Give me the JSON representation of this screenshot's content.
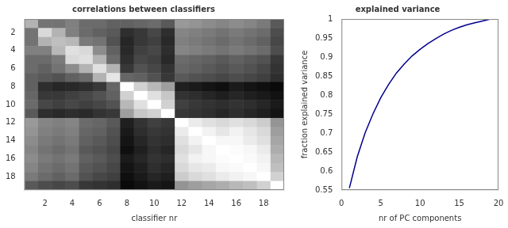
{
  "chart_data": [
    {
      "type": "heatmap",
      "title": "correlations between classifiers",
      "x_label": "classifier nr",
      "cells": [
        [
          0.7,
          0.45,
          0.45,
          0.5,
          0.42,
          0.42,
          0.38,
          0.38,
          0.4,
          0.42,
          0.35,
          0.6,
          0.58,
          0.55,
          0.52,
          0.55,
          0.52,
          0.48,
          0.35
        ],
        [
          0.45,
          0.85,
          0.7,
          0.5,
          0.42,
          0.38,
          0.35,
          0.18,
          0.22,
          0.28,
          0.18,
          0.52,
          0.5,
          0.48,
          0.45,
          0.48,
          0.45,
          0.42,
          0.3
        ],
        [
          0.45,
          0.7,
          0.75,
          0.72,
          0.48,
          0.45,
          0.32,
          0.15,
          0.22,
          0.25,
          0.16,
          0.5,
          0.48,
          0.45,
          0.42,
          0.45,
          0.42,
          0.38,
          0.28
        ],
        [
          0.5,
          0.5,
          0.72,
          0.88,
          0.85,
          0.55,
          0.38,
          0.16,
          0.25,
          0.28,
          0.18,
          0.52,
          0.5,
          0.48,
          0.45,
          0.48,
          0.45,
          0.42,
          0.3
        ],
        [
          0.42,
          0.42,
          0.48,
          0.85,
          0.88,
          0.7,
          0.42,
          0.18,
          0.28,
          0.25,
          0.16,
          0.42,
          0.4,
          0.38,
          0.35,
          0.38,
          0.35,
          0.32,
          0.22
        ],
        [
          0.42,
          0.38,
          0.45,
          0.55,
          0.7,
          0.88,
          0.7,
          0.22,
          0.32,
          0.28,
          0.2,
          0.4,
          0.38,
          0.35,
          0.32,
          0.35,
          0.32,
          0.28,
          0.2
        ],
        [
          0.38,
          0.35,
          0.32,
          0.38,
          0.42,
          0.7,
          0.9,
          0.4,
          0.38,
          0.32,
          0.22,
          0.35,
          0.32,
          0.3,
          0.28,
          0.3,
          0.28,
          0.25,
          0.18
        ],
        [
          0.38,
          0.18,
          0.15,
          0.16,
          0.18,
          0.22,
          0.4,
          1.0,
          0.82,
          0.72,
          0.62,
          0.12,
          0.1,
          0.08,
          0.06,
          0.1,
          0.08,
          0.06,
          0.04
        ],
        [
          0.4,
          0.22,
          0.22,
          0.25,
          0.28,
          0.32,
          0.38,
          0.82,
          1.0,
          0.88,
          0.78,
          0.2,
          0.18,
          0.15,
          0.12,
          0.15,
          0.12,
          0.1,
          0.07
        ],
        [
          0.42,
          0.28,
          0.25,
          0.28,
          0.25,
          0.28,
          0.32,
          0.72,
          0.88,
          1.0,
          0.82,
          0.25,
          0.22,
          0.2,
          0.18,
          0.2,
          0.18,
          0.15,
          0.1
        ],
        [
          0.35,
          0.18,
          0.16,
          0.18,
          0.16,
          0.2,
          0.22,
          0.62,
          0.78,
          0.82,
          1.0,
          0.22,
          0.2,
          0.18,
          0.15,
          0.18,
          0.15,
          0.12,
          0.08
        ],
        [
          0.6,
          0.52,
          0.5,
          0.52,
          0.42,
          0.4,
          0.35,
          0.12,
          0.2,
          0.25,
          0.22,
          1.0,
          0.92,
          0.88,
          0.85,
          0.88,
          0.85,
          0.8,
          0.58
        ],
        [
          0.58,
          0.5,
          0.48,
          0.5,
          0.4,
          0.38,
          0.32,
          0.1,
          0.18,
          0.22,
          0.2,
          0.92,
          1.0,
          0.95,
          0.9,
          0.95,
          0.9,
          0.85,
          0.62
        ],
        [
          0.55,
          0.48,
          0.45,
          0.48,
          0.38,
          0.35,
          0.3,
          0.08,
          0.15,
          0.2,
          0.18,
          0.88,
          0.95,
          1.0,
          0.97,
          0.97,
          0.92,
          0.88,
          0.65
        ],
        [
          0.52,
          0.45,
          0.42,
          0.45,
          0.35,
          0.32,
          0.28,
          0.06,
          0.12,
          0.18,
          0.15,
          0.85,
          0.9,
          0.97,
          1.0,
          0.99,
          0.97,
          0.92,
          0.68
        ],
        [
          0.55,
          0.48,
          0.45,
          0.48,
          0.38,
          0.35,
          0.3,
          0.1,
          0.15,
          0.2,
          0.18,
          0.88,
          0.95,
          0.97,
          0.99,
          1.0,
          0.98,
          0.95,
          0.72
        ],
        [
          0.52,
          0.45,
          0.42,
          0.45,
          0.35,
          0.32,
          0.28,
          0.08,
          0.12,
          0.18,
          0.15,
          0.85,
          0.9,
          0.92,
          0.97,
          0.98,
          1.0,
          0.97,
          0.75
        ],
        [
          0.48,
          0.42,
          0.38,
          0.42,
          0.32,
          0.28,
          0.25,
          0.06,
          0.1,
          0.15,
          0.12,
          0.8,
          0.85,
          0.88,
          0.92,
          0.95,
          0.97,
          1.0,
          0.82
        ],
        [
          0.35,
          0.3,
          0.28,
          0.3,
          0.22,
          0.2,
          0.18,
          0.04,
          0.07,
          0.1,
          0.08,
          0.58,
          0.62,
          0.65,
          0.68,
          0.72,
          0.75,
          0.82,
          1.0
        ]
      ],
      "color_range": [
        0,
        1
      ],
      "xlim": [
        0.5,
        19.5
      ],
      "ylim": [
        19.5,
        0.5
      ],
      "xticks": [
        2,
        4,
        6,
        8,
        10,
        12,
        14,
        16,
        18
      ],
      "yticks": [
        2,
        4,
        6,
        8,
        10,
        12,
        14,
        16,
        18
      ],
      "grid": false
    },
    {
      "type": "line",
      "title": "explained variance",
      "x_label": "nr of PC components",
      "y_label": "fraction explained variance",
      "x": [
        1,
        2,
        3,
        4,
        5,
        6,
        7,
        8,
        9,
        10,
        11,
        12,
        13,
        14,
        15,
        16,
        17,
        18,
        19
      ],
      "values": [
        0.555,
        0.637,
        0.7,
        0.75,
        0.793,
        0.828,
        0.858,
        0.882,
        0.903,
        0.92,
        0.935,
        0.948,
        0.96,
        0.97,
        0.978,
        0.985,
        0.99,
        0.995,
        1.0
      ],
      "color": "#00008B",
      "xlim": [
        0,
        20
      ],
      "ylim": [
        0.55,
        1.0
      ],
      "xticks": [
        0,
        5,
        10,
        15,
        20
      ],
      "yticks": [
        0.55,
        0.6,
        0.65,
        0.7,
        0.75,
        0.8,
        0.85,
        0.9,
        0.95,
        1.0
      ],
      "grid": false
    }
  ]
}
